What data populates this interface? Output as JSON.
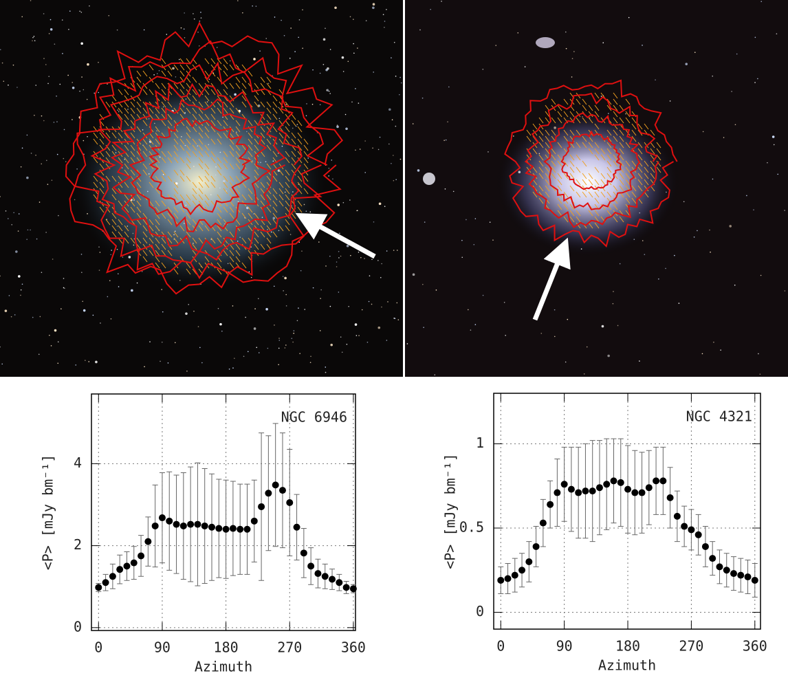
{
  "chart_data": [
    {
      "type": "scatter",
      "annotation": "NGC 6946",
      "xlabel": "Azimuth",
      "ylabel": "<P> [mJy bm⁻¹]",
      "x": [
        0,
        10,
        20,
        30,
        40,
        50,
        60,
        70,
        80,
        90,
        100,
        110,
        120,
        130,
        140,
        150,
        160,
        170,
        180,
        190,
        200,
        210,
        220,
        230,
        240,
        250,
        260,
        270,
        280,
        290,
        300,
        310,
        320,
        330,
        340,
        350,
        360
      ],
      "series": [
        {
          "color": "#000000",
          "values": [
            0.98,
            1.1,
            1.25,
            1.42,
            1.5,
            1.58,
            1.75,
            2.1,
            2.48,
            2.68,
            2.6,
            2.52,
            2.48,
            2.52,
            2.52,
            2.48,
            2.45,
            2.42,
            2.4,
            2.42,
            2.4,
            2.4,
            2.6,
            2.95,
            3.28,
            3.48,
            3.35,
            3.05,
            2.45,
            1.82,
            1.5,
            1.32,
            1.25,
            1.18,
            1.1,
            0.98,
            0.95
          ],
          "errors": [
            0.1,
            0.2,
            0.3,
            0.35,
            0.35,
            0.4,
            0.5,
            0.6,
            1.0,
            1.1,
            1.2,
            1.2,
            1.3,
            1.4,
            1.5,
            1.4,
            1.3,
            1.2,
            1.2,
            1.15,
            1.1,
            1.1,
            1.0,
            1.8,
            1.4,
            1.5,
            1.4,
            1.3,
            0.8,
            0.6,
            0.45,
            0.35,
            0.3,
            0.25,
            0.2,
            0.15,
            0.1
          ]
        }
      ],
      "xlim": [
        -10,
        363
      ],
      "ylim": [
        -0.07,
        5.7
      ],
      "xticks": [
        0,
        90,
        180,
        270,
        360
      ],
      "yticks": [
        0,
        2,
        4
      ],
      "grid": true
    },
    {
      "type": "scatter",
      "annotation": "NGC 4321",
      "xlabel": "Azimuth",
      "ylabel": "<P> [mJy bm⁻¹]",
      "x": [
        0,
        10,
        20,
        30,
        40,
        50,
        60,
        70,
        80,
        90,
        100,
        110,
        120,
        130,
        140,
        150,
        160,
        170,
        180,
        190,
        200,
        210,
        220,
        230,
        240,
        250,
        260,
        270,
        280,
        290,
        300,
        310,
        320,
        330,
        340,
        350,
        360
      ],
      "series": [
        {
          "color": "#000000",
          "values": [
            0.19,
            0.2,
            0.22,
            0.25,
            0.3,
            0.39,
            0.53,
            0.64,
            0.71,
            0.76,
            0.73,
            0.71,
            0.72,
            0.72,
            0.74,
            0.76,
            0.78,
            0.77,
            0.73,
            0.71,
            0.71,
            0.74,
            0.78,
            0.78,
            0.68,
            0.57,
            0.51,
            0.49,
            0.46,
            0.39,
            0.32,
            0.27,
            0.25,
            0.23,
            0.22,
            0.21,
            0.19
          ],
          "errors": [
            0.08,
            0.09,
            0.1,
            0.1,
            0.12,
            0.12,
            0.14,
            0.14,
            0.2,
            0.22,
            0.25,
            0.27,
            0.28,
            0.3,
            0.28,
            0.27,
            0.25,
            0.26,
            0.26,
            0.25,
            0.24,
            0.22,
            0.2,
            0.2,
            0.18,
            0.15,
            0.12,
            0.12,
            0.12,
            0.12,
            0.1,
            0.1,
            0.1,
            0.1,
            0.1,
            0.1,
            0.1
          ]
        }
      ],
      "xlim": [
        -10,
        368
      ],
      "ylim": [
        -0.1,
        1.3
      ],
      "xticks": [
        0,
        90,
        180,
        270,
        360
      ],
      "yticks": [
        0,
        0.5,
        1
      ],
      "grid": true
    }
  ]
}
